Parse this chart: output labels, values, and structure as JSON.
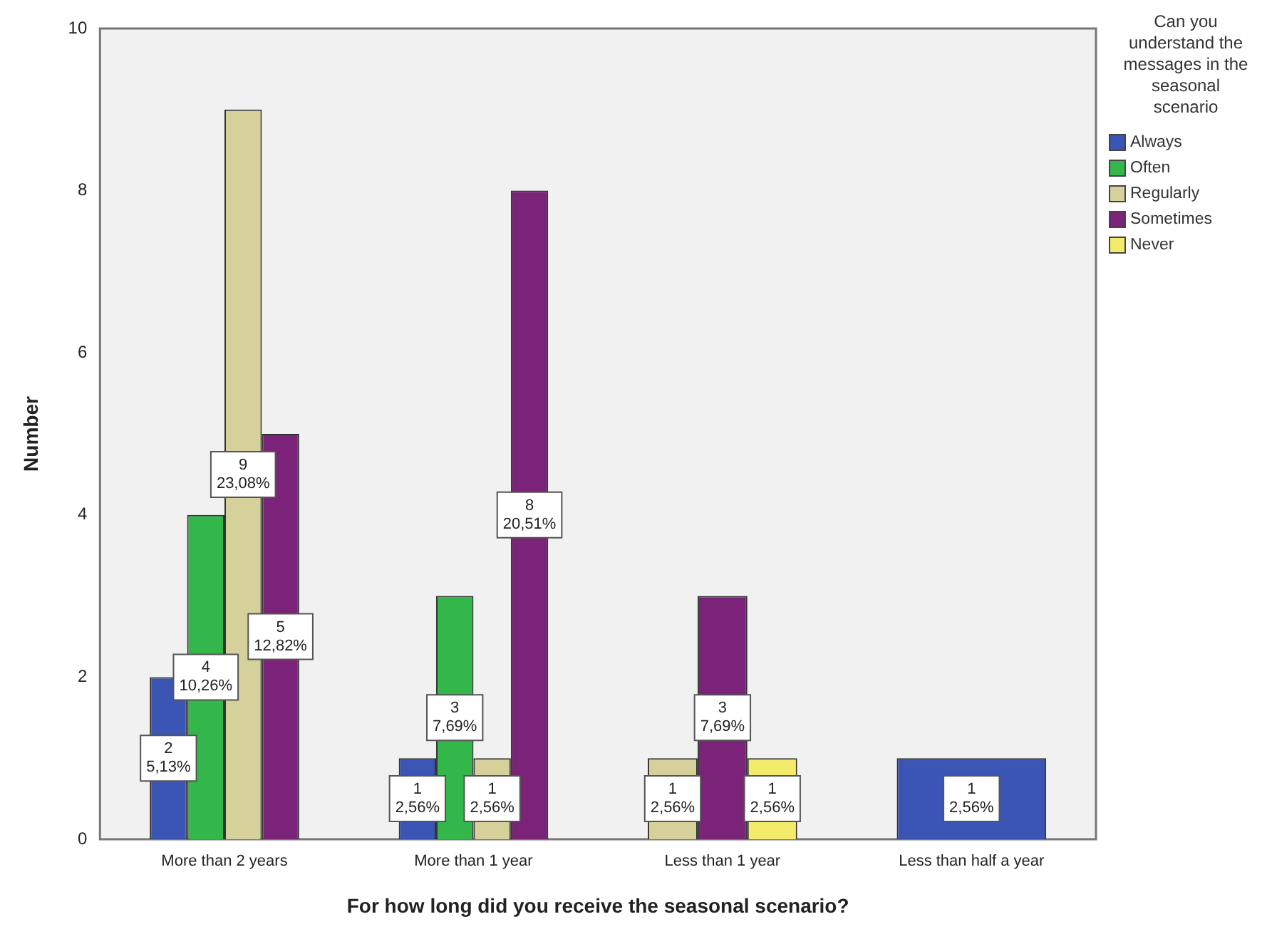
{
  "chart_data": {
    "type": "bar",
    "xlabel": "For how long did you receive the seasonal scenario?",
    "ylabel": "Number",
    "legend_title": "Can you understand the messages in the seasonal scenario",
    "legend": "right",
    "categories": [
      "More than 2 years",
      "More than 1 year",
      "Less than 1 year",
      "Less than half a year"
    ],
    "series": [
      {
        "name": "Always",
        "color": "#3a55b4",
        "values": [
          2,
          1,
          null,
          1
        ],
        "value_labels": [
          "2\n5,13%",
          "1\n2,56%",
          null,
          "1\n2,56%"
        ]
      },
      {
        "name": "Often",
        "color": "#33b64a",
        "values": [
          4,
          3,
          null,
          null
        ],
        "value_labels": [
          "4\n10,26%",
          "3\n7,69%",
          null,
          null
        ]
      },
      {
        "name": "Regularly",
        "color": "#d6d09a",
        "values": [
          9,
          1,
          1,
          null
        ],
        "value_labels": [
          "9\n23,08%",
          "1\n2,56%",
          "1\n2,56%",
          null
        ]
      },
      {
        "name": "Sometimes",
        "color": "#7b2378",
        "values": [
          5,
          8,
          3,
          null
        ],
        "value_labels": [
          "5\n12,82%",
          "8\n20,51%",
          "3\n7,69%",
          null
        ]
      },
      {
        "name": "Never",
        "color": "#f2ec6a",
        "values": [
          null,
          null,
          1,
          null
        ],
        "value_labels": [
          null,
          null,
          "1\n2,56%",
          null
        ]
      }
    ],
    "ylim": [
      0,
      10
    ],
    "yticks": [
      0,
      2,
      4,
      6,
      8,
      10
    ],
    "grid": false
  }
}
